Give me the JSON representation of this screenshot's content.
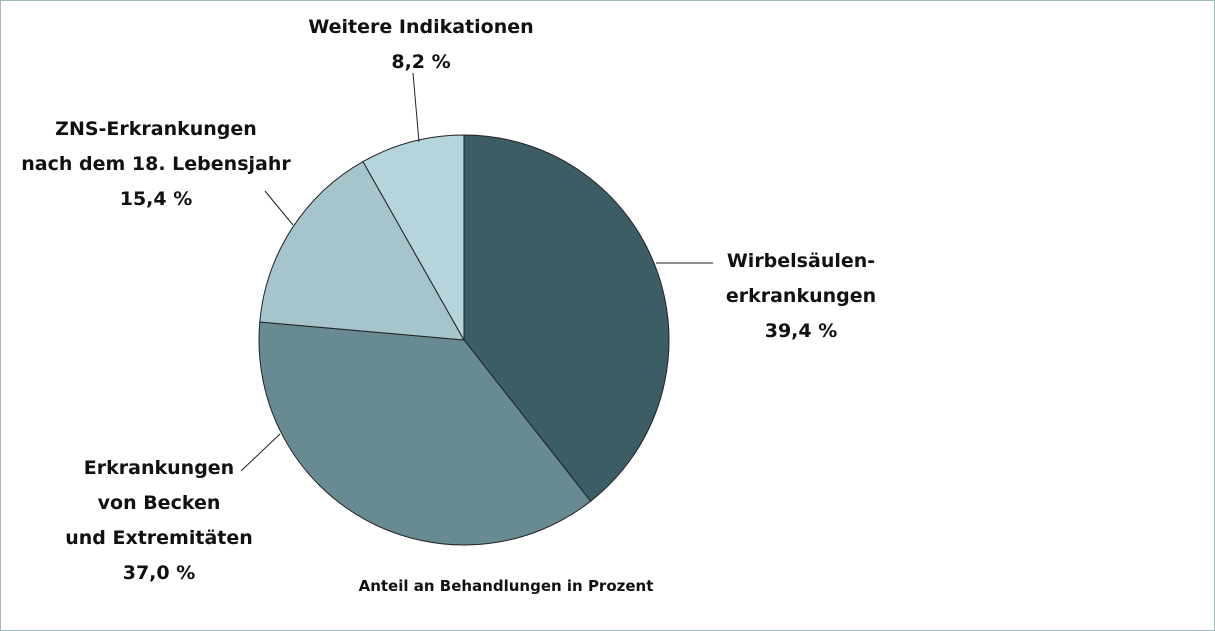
{
  "chart_data": {
    "type": "pie",
    "categories": [
      "Wirbelsäulen-\nerkrankungen",
      "Erkrankungen\nvon Becken\nund Extremitäten",
      "ZNS-Erkrankungen\nnach dem 18. Lebensjahr",
      "Weitere Indikationen"
    ],
    "values": [
      39.4,
      37.0,
      15.4,
      8.2
    ],
    "value_labels": [
      "39,4 %",
      "37,0 %",
      "15,4 %",
      "8,2 %"
    ],
    "colors": [
      "#3d5d66",
      "#688a93",
      "#a6c4cb",
      "#b5d4db"
    ],
    "caption": "Anteil an Behandlungen in Prozent"
  }
}
